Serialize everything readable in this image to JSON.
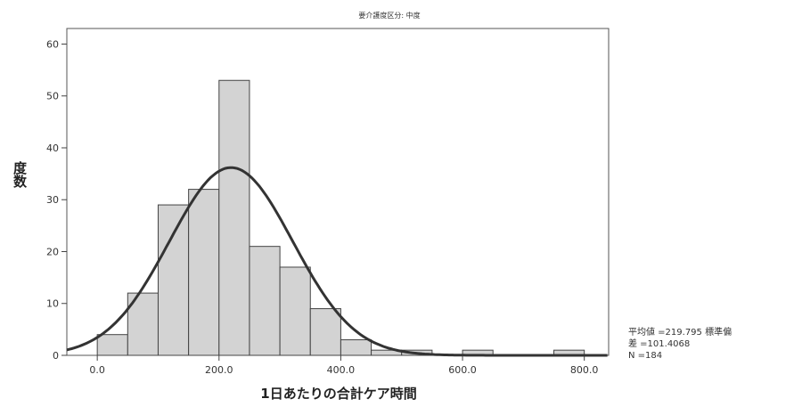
{
  "chart_data": {
    "type": "bar",
    "subtype": "histogram_with_normal_curve",
    "title": "要介護度区分: 中度",
    "xlabel": "1日あたりの合計ケア時間",
    "ylabel": "度数",
    "xlim": [
      -50,
      840
    ],
    "ylim": [
      0,
      63
    ],
    "x_ticks": [
      0,
      200,
      400,
      600,
      800
    ],
    "x_tick_labels": [
      "0.0",
      "200.0",
      "400.0",
      "600.0",
      "800.0"
    ],
    "y_ticks": [
      0,
      10,
      20,
      30,
      40,
      50,
      60
    ],
    "y_tick_labels": [
      "0",
      "10",
      "20",
      "30",
      "40",
      "50",
      "60"
    ],
    "bin_width": 50,
    "bin_starts": [
      0,
      50,
      100,
      150,
      200,
      250,
      300,
      350,
      400,
      450,
      500,
      550,
      600,
      650,
      700,
      750
    ],
    "values": [
      4,
      12,
      29,
      32,
      53,
      21,
      17,
      9,
      3,
      1,
      1,
      0,
      1,
      0,
      0,
      1
    ],
    "normal_curve": {
      "mean": 219.795,
      "std": 101.4068,
      "n": 184
    },
    "grid": false,
    "legend": "none",
    "stats_lines": [
      "平均値 =219.795 標準偏",
      "差 =101.4068",
      "N =184"
    ]
  }
}
